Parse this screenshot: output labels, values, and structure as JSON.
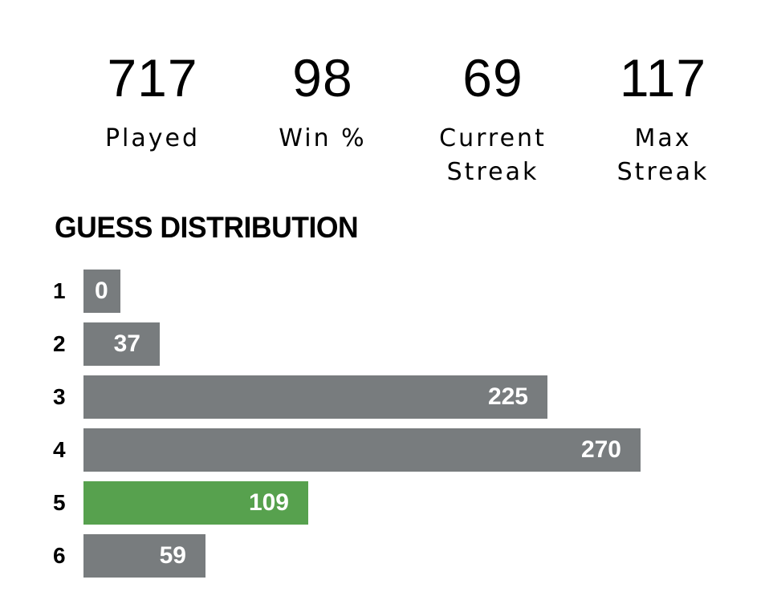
{
  "stats": [
    {
      "value": "717",
      "label": "Played"
    },
    {
      "value": "98",
      "label": "Win %"
    },
    {
      "value": "69",
      "label": "Current\nStreak"
    },
    {
      "value": "117",
      "label": "Max\nStreak"
    }
  ],
  "distribution": {
    "title": "GUESS DISTRIBUTION"
  },
  "chart_data": {
    "type": "bar",
    "orientation": "horizontal",
    "categories": [
      "1",
      "2",
      "3",
      "4",
      "5",
      "6"
    ],
    "values": [
      0,
      37,
      225,
      270,
      109,
      59
    ],
    "highlight_category": "5",
    "colors": {
      "bar": "#787c7e",
      "highlight": "#57a14e",
      "label": "#ffffff"
    }
  }
}
